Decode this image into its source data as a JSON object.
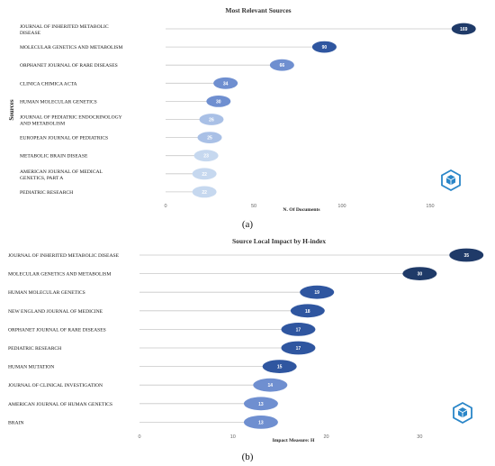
{
  "chart_data": [
    {
      "type": "lollipop",
      "title": "Most Relevant Sources",
      "xlabel": "N. Of Documents",
      "ylabel": "Sources",
      "caption": "(a)",
      "xlim": [
        0,
        175
      ],
      "xticks": [
        0,
        50,
        100,
        150
      ],
      "categories": [
        "JOURNAL OF INHERITED METABOLIC DISEASE",
        "MOLECULAR GENETICS AND METABOLISM",
        "ORPHANET JOURNAL OF RARE DISEASES",
        "CLINICA CHIMICA ACTA",
        "HUMAN MOLECULAR GENETICS",
        "JOURNAL OF PEDIATRIC ENDOCRINOLOGY AND METABOLISM",
        "EUROPEAN JOURNAL OF PEDIATRICS",
        "METABOLIC BRAIN DISEASE",
        "AMERICAN JOURNAL OF MEDICAL GENETICS, PART A",
        "PEDIATRIC RESEARCH"
      ],
      "values": [
        169,
        90,
        66,
        34,
        30,
        26,
        25,
        23,
        22,
        22
      ],
      "value_labels": [
        "169",
        "90",
        "66",
        "34",
        "30",
        "26",
        "25",
        "23",
        "22",
        "22"
      ],
      "grid": false
    },
    {
      "type": "lollipop",
      "title": "Source Local Impact by H-index",
      "xlabel": "Impact Measure: H",
      "caption": "(b)",
      "xlim": [
        0,
        37
      ],
      "xticks": [
        0,
        10,
        20,
        30
      ],
      "categories": [
        "JOURNAL OF INHERITED METABOLIC DISEASE",
        "MOLECULAR GENETICS AND METABOLISM",
        "HUMAN MOLECULAR GENETICS",
        "NEW ENGLAND JOURNAL OF MEDICINE",
        "ORPHANET JOURNAL OF RARE DISEASES",
        "PEDIATRIC RESEARCH",
        "HUMAN MUTATION",
        "JOURNAL OF CLINICAL INVESTIGATION",
        "AMERICAN JOURNAL OF HUMAN GENETICS",
        "BRAIN"
      ],
      "values": [
        35,
        30,
        19,
        18,
        17,
        17,
        15,
        14,
        13,
        13
      ],
      "value_labels": [
        "35",
        "30",
        "19",
        "18",
        "17",
        "17",
        "15",
        "14",
        "13",
        "13"
      ],
      "grid": false
    }
  ],
  "colors": {
    "darkest": "#1f3a68",
    "dark": "#2f56a0",
    "mid": "#6f8fd0",
    "light": "#a9c0e6",
    "lightest": "#c6d8ef",
    "stem": "#c8c8c8",
    "logo": "#2a86c8"
  },
  "logo_icon": "package-cube-icon"
}
